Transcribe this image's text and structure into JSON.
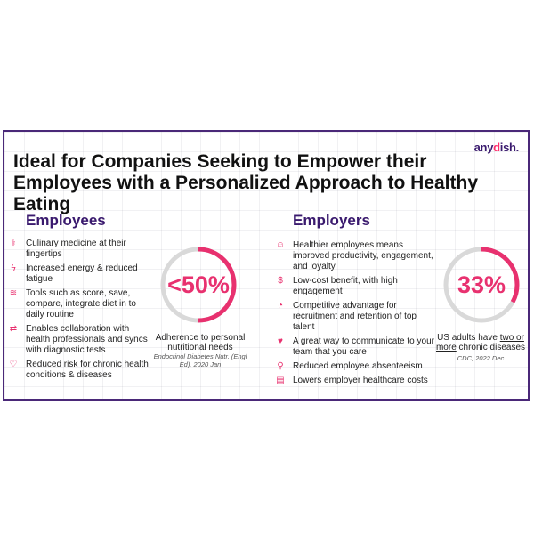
{
  "logo": {
    "text_before": "any",
    "text_dot": "d",
    "text_after": "ish."
  },
  "title": "Ideal for Companies Seeking to Empower their Employees with a Personalized Approach to Healthy Eating",
  "employees": {
    "heading": "Employees",
    "items": [
      {
        "icon": "⚕",
        "icon_name": "caduceus-icon",
        "text": "Culinary medicine at their fingertips"
      },
      {
        "icon": "ϟ",
        "icon_name": "lightning-icon",
        "text": "Increased energy & reduced fatigue"
      },
      {
        "icon": "≋",
        "icon_name": "sliders-icon",
        "text": "Tools such as score, save, compare, integrate diet in to daily routine"
      },
      {
        "icon": "⇄",
        "icon_name": "sync-icon",
        "text": "Enables collaboration with health professionals and syncs with diagnostic tests"
      },
      {
        "icon": "♡",
        "icon_name": "heart-icon",
        "text": "Reduced risk for chronic health conditions & diseases"
      }
    ],
    "stat": {
      "label": "<50%",
      "fraction": 0.5,
      "caption": "Adherence to personal nutritional needs",
      "source_a": "Endocrinol Diabetes ",
      "source_link": "Nutr",
      "source_b": ". (Engl Ed). 2020 Jan"
    }
  },
  "employers": {
    "heading": "Employers",
    "items": [
      {
        "icon": "☺",
        "icon_name": "smile-icon",
        "text": "Healthier employees means improved productivity, engagement, and loyalty"
      },
      {
        "icon": "$",
        "icon_name": "dollar-icon",
        "text": "Low-cost benefit, with high engagement"
      },
      {
        "icon": "◔",
        "icon_name": "pie-icon",
        "text": "Competitive advantage for recruitment and retention of top talent"
      },
      {
        "icon": "♥",
        "icon_name": "heart-chat-icon",
        "text": "A great way to communicate to your team that you care"
      },
      {
        "icon": "⚲",
        "icon_name": "people-icon",
        "text": "Reduced employee absenteeism"
      },
      {
        "icon": "▤",
        "icon_name": "building-icon",
        "text": "Lowers employer healthcare costs"
      }
    ],
    "stat": {
      "label": "33%",
      "fraction": 0.33,
      "caption_a": "US adults have ",
      "caption_link": "two or more",
      "caption_b": " chronic diseases",
      "source": "CDC, 2022 Dec"
    }
  },
  "colors": {
    "accent": "#e8316f",
    "brand": "#3a1a6e",
    "border": "#4a2878",
    "ring_track": "#d9d9d9"
  }
}
